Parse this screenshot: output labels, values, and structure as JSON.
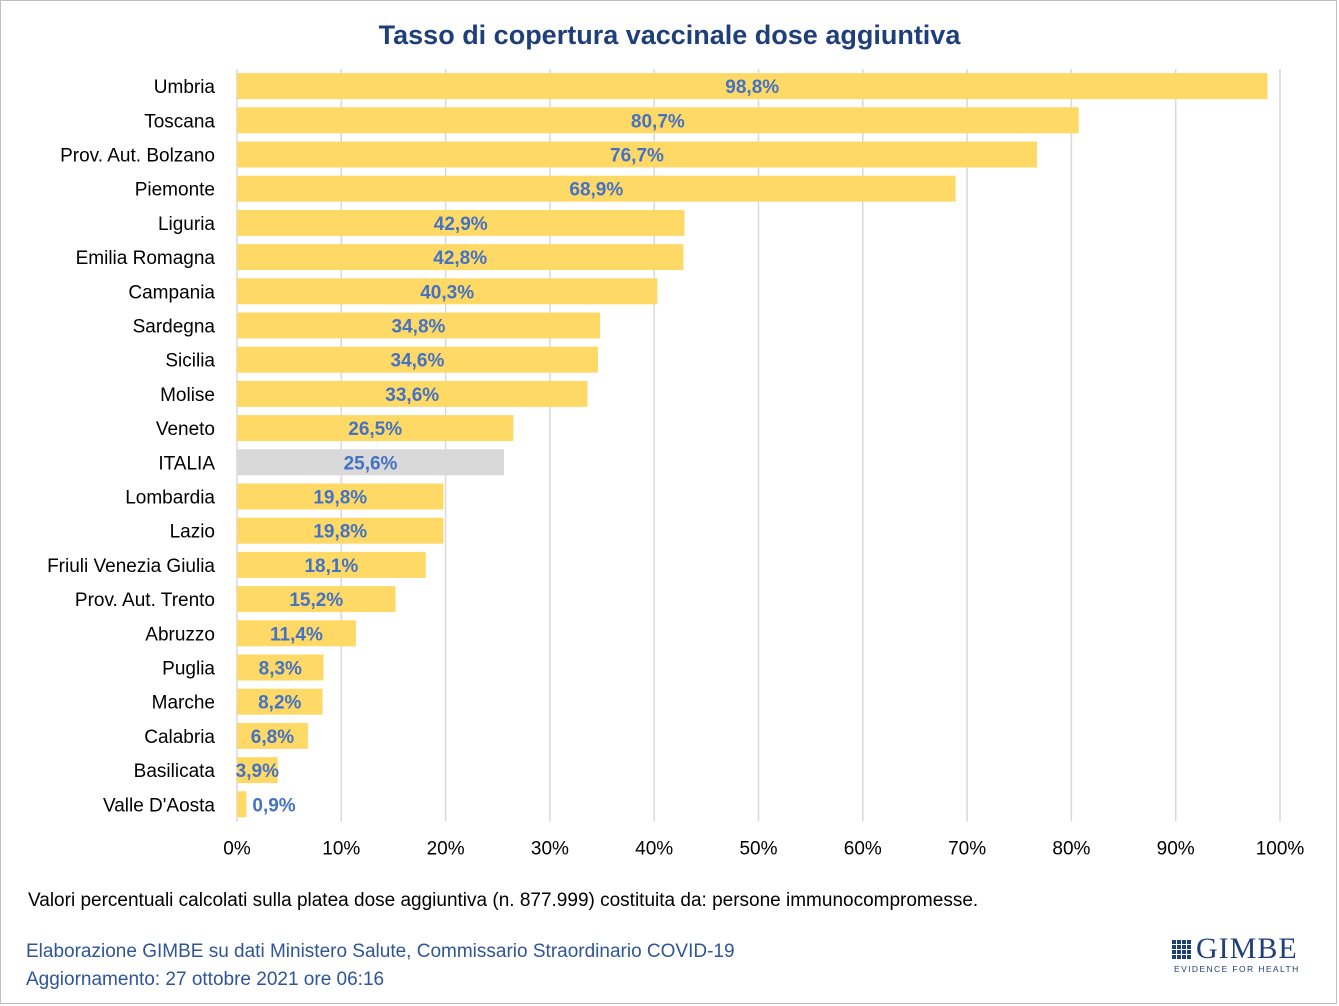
{
  "chart_data": {
    "type": "bar",
    "orientation": "horizontal",
    "title": "Tasso di copertura vaccinale dose aggiuntiva",
    "categories": [
      "Umbria",
      "Toscana",
      "Prov. Aut. Bolzano",
      "Piemonte",
      "Liguria",
      "Emilia Romagna",
      "Campania",
      "Sardegna",
      "Sicilia",
      "Molise",
      "Veneto",
      "ITALIA",
      "Lombardia",
      "Lazio",
      "Friuli Venezia Giulia",
      "Prov. Aut. Trento",
      "Abruzzo",
      "Puglia",
      "Marche",
      "Calabria",
      "Basilicata",
      "Valle D'Aosta"
    ],
    "values": [
      98.8,
      80.7,
      76.7,
      68.9,
      42.9,
      42.8,
      40.3,
      34.8,
      34.6,
      33.6,
      26.5,
      25.6,
      19.8,
      19.8,
      18.1,
      15.2,
      11.4,
      8.3,
      8.2,
      6.8,
      3.9,
      0.9
    ],
    "data_labels": [
      "98,8%",
      "80,7%",
      "76,7%",
      "68,9%",
      "42,9%",
      "42,8%",
      "40,3%",
      "34,8%",
      "34,6%",
      "33,6%",
      "26,5%",
      "25,6%",
      "19,8%",
      "19,8%",
      "18,1%",
      "15,2%",
      "11,4%",
      "8,3%",
      "8,2%",
      "6,8%",
      "3,9%",
      "0,9%"
    ],
    "highlight_category": "ITALIA",
    "x_ticks": [
      "0%",
      "10%",
      "20%",
      "30%",
      "40%",
      "50%",
      "60%",
      "70%",
      "80%",
      "90%",
      "100%"
    ],
    "xlim": [
      0,
      100
    ],
    "grid": true,
    "colors": {
      "bar": "#ffd966",
      "highlight_bar": "#d9d9d9",
      "label": "#4472c4",
      "grid": "#d9d9d9"
    }
  },
  "footer": {
    "note": "Valori percentuali calcolati sulla platea dose aggiuntiva (n. 877.999) costituita da: persone immunocompromesse.",
    "source_line1": "Elaborazione GIMBE su dati Ministero Salute, Commissario Straordinario COVID-19",
    "source_line2": "Aggiornamento: 27 ottobre 2021 ore 06:16"
  },
  "logo": {
    "name": "GIMBE",
    "tagline": "EVIDENCE FOR HEALTH"
  }
}
